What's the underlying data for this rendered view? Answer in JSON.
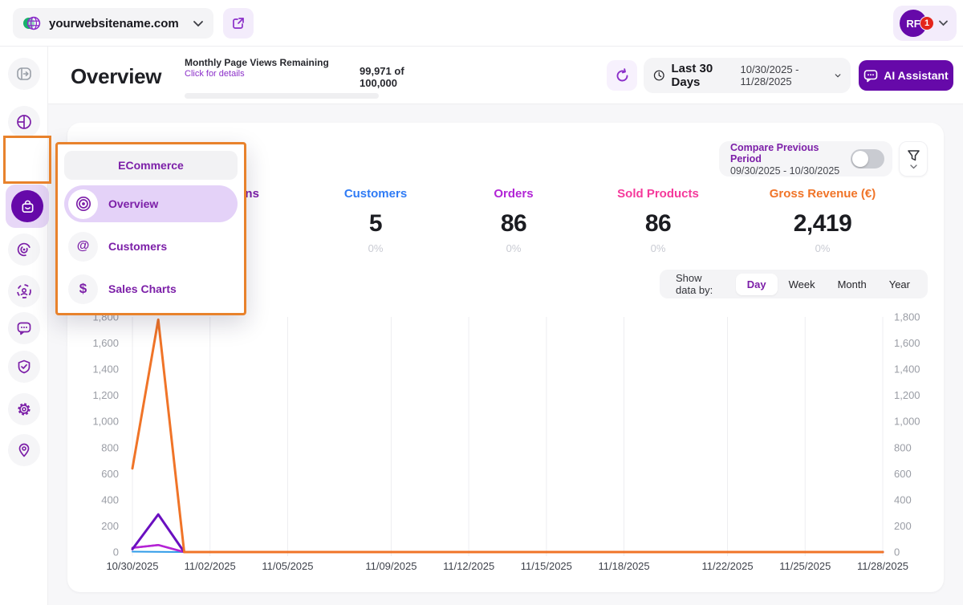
{
  "topbar": {
    "website": "yourwebsitename.com",
    "avatar_initials": "RF",
    "notification_count": "1"
  },
  "header": {
    "title": "Overview",
    "pageviews": {
      "label": "Monthly Page Views Remaining",
      "link": "Click for details",
      "value": "99,971 of 100,000"
    },
    "date_picker": {
      "preset": "Last 30 Days",
      "range": "10/30/2025 - 11/28/2025"
    },
    "ai_button": "AI Assistant"
  },
  "sidebar": {
    "active_item": "ecommerce",
    "icons": [
      "collapse-icon",
      "dashboard-icon",
      "ecommerce-bag-icon",
      "behavior-spiral-icon",
      "visitors-focus-icon",
      "feedback-chat-icon",
      "privacy-shield-icon",
      "settings-gear-icon",
      "location-pin-icon"
    ]
  },
  "flyout": {
    "title": "ECommerce",
    "items": [
      {
        "label": "Overview",
        "active": true
      },
      {
        "label": "Customers",
        "active": false
      },
      {
        "label": "Sales Charts",
        "active": false
      }
    ]
  },
  "panel": {
    "compare": {
      "label": "Compare Previous Period",
      "range": "09/30/2025 - 10/30/2025",
      "enabled": false
    },
    "stats": [
      {
        "label": "Sessions",
        "value": "",
        "delta": "",
        "color": "#7C1FA8"
      },
      {
        "label": "Customers",
        "value": "5",
        "delta": "0%",
        "color": "#2F7BF5"
      },
      {
        "label": "Orders",
        "value": "86",
        "delta": "0%",
        "color": "#B224D6"
      },
      {
        "label": "Sold Products",
        "value": "86",
        "delta": "0%",
        "color": "#F5399B"
      },
      {
        "label": "Gross Revenue (€)",
        "value": "2,419",
        "delta": "0%",
        "color": "#F07428"
      }
    ],
    "show_data_by": {
      "label": "Show data by:",
      "options": [
        "Day",
        "Week",
        "Month",
        "Year"
      ],
      "selected": "Day"
    }
  },
  "chart_data": {
    "type": "line",
    "x_start": "10/30/2025",
    "x_end": "11/28/2025",
    "days_total": 30,
    "x_tick_days": [
      0,
      3,
      6,
      10,
      13,
      16,
      19,
      23,
      26,
      29
    ],
    "x_tick_labels": [
      "10/30/2025",
      "11/02/2025",
      "11/05/2025",
      "11/09/2025",
      "11/12/2025",
      "11/15/2025",
      "11/18/2025",
      "11/22/2025",
      "11/25/2025",
      "11/28/2025"
    ],
    "ylim": [
      0,
      1800
    ],
    "ytick_step": 200,
    "grid": "vertical-only",
    "legend": "none",
    "series": [
      {
        "name": "Customers",
        "color": "#2F9BE8",
        "width": 2,
        "values": [
          3,
          2,
          0,
          0,
          0,
          0,
          0,
          0,
          0,
          0,
          0,
          0,
          0,
          0,
          0,
          0,
          0,
          0,
          0,
          0,
          0,
          0,
          0,
          0,
          0,
          0,
          0,
          0,
          0,
          0
        ]
      },
      {
        "name": "Sold Products",
        "color": "#E935B8",
        "width": 2.5,
        "values": [
          32,
          54,
          0,
          0,
          0,
          0,
          0,
          0,
          0,
          0,
          0,
          0,
          0,
          0,
          0,
          0,
          0,
          0,
          0,
          0,
          0,
          0,
          0,
          0,
          0,
          0,
          0,
          0,
          0,
          0
        ]
      },
      {
        "name": "Orders",
        "color": "#B224D6",
        "width": 2.5,
        "values": [
          32,
          54,
          0,
          0,
          0,
          0,
          0,
          0,
          0,
          0,
          0,
          0,
          0,
          0,
          0,
          0,
          0,
          0,
          0,
          0,
          0,
          0,
          0,
          0,
          0,
          0,
          0,
          0,
          0,
          0
        ]
      },
      {
        "name": "Sessions",
        "color": "#6A0FC0",
        "width": 3,
        "values": [
          22,
          288,
          0,
          0,
          0,
          0,
          0,
          0,
          0,
          0,
          0,
          0,
          0,
          0,
          0,
          0,
          0,
          0,
          0,
          0,
          0,
          0,
          0,
          0,
          0,
          0,
          0,
          0,
          0,
          0
        ]
      },
      {
        "name": "Gross Revenue (€)",
        "color": "#F07428",
        "width": 3,
        "values": [
          640,
          1779,
          0,
          0,
          0,
          0,
          0,
          0,
          0,
          0,
          0,
          0,
          0,
          0,
          0,
          0,
          0,
          0,
          0,
          0,
          0,
          0,
          0,
          0,
          0,
          0,
          0,
          0,
          0,
          0
        ]
      }
    ]
  },
  "annotations": {
    "highlight_color": "#E8822C"
  }
}
